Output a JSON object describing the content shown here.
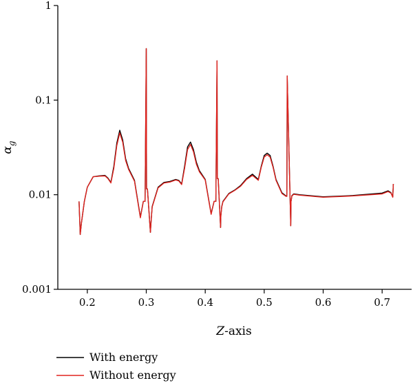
{
  "chart_data": {
    "type": "line",
    "title": "",
    "xlabel_italic": "Z",
    "xlabel_rest": "-axis",
    "ylabel_main": "α",
    "ylabel_sub": "g",
    "xlim": [
      0.15,
      0.75
    ],
    "ylim": [
      0.001,
      1
    ],
    "yscale": "log",
    "xticks": [
      0.2,
      0.3,
      0.4,
      0.5,
      0.6,
      0.7
    ],
    "xtick_labels": [
      "0.2",
      "0.3",
      "0.4",
      "0.5",
      "0.6",
      "0.7"
    ],
    "yticks": [
      0.001,
      0.01,
      0.1,
      1
    ],
    "ytick_labels": [
      "0.001",
      "0.01",
      "0.1",
      "1"
    ],
    "grid": false,
    "legend_position": "bottom-left, below plot",
    "series": [
      {
        "name": "With energy",
        "color": "#000000",
        "x": [
          0.186,
          0.188,
          0.19,
          0.195,
          0.2,
          0.21,
          0.22,
          0.23,
          0.235,
          0.24,
          0.245,
          0.25,
          0.255,
          0.26,
          0.265,
          0.27,
          0.28,
          0.29,
          0.295,
          0.298,
          0.3,
          0.3005,
          0.302,
          0.307,
          0.308,
          0.31,
          0.32,
          0.33,
          0.34,
          0.35,
          0.355,
          0.36,
          0.365,
          0.37,
          0.375,
          0.38,
          0.385,
          0.39,
          0.4,
          0.41,
          0.415,
          0.418,
          0.42,
          0.4205,
          0.422,
          0.426,
          0.4265,
          0.428,
          0.43,
          0.44,
          0.45,
          0.46,
          0.47,
          0.48,
          0.49,
          0.495,
          0.5,
          0.505,
          0.51,
          0.515,
          0.52,
          0.53,
          0.537,
          0.5385,
          0.539,
          0.545,
          0.5455,
          0.547,
          0.55,
          0.56,
          0.6,
          0.65,
          0.7,
          0.71,
          0.715,
          0.718,
          0.719
        ],
        "y": [
          0.0085,
          0.0038,
          0.005,
          0.0085,
          0.012,
          0.0155,
          0.0158,
          0.016,
          0.015,
          0.0135,
          0.02,
          0.035,
          0.048,
          0.038,
          0.024,
          0.019,
          0.0142,
          0.0058,
          0.0085,
          0.0085,
          0.35,
          0.0115,
          0.0115,
          0.004,
          0.005,
          0.0075,
          0.012,
          0.0135,
          0.0138,
          0.0145,
          0.0142,
          0.013,
          0.02,
          0.032,
          0.036,
          0.03,
          0.022,
          0.018,
          0.0145,
          0.0063,
          0.0085,
          0.0085,
          0.26,
          0.0148,
          0.0148,
          0.0045,
          0.006,
          0.0075,
          0.0085,
          0.0103,
          0.0112,
          0.0125,
          0.0148,
          0.0165,
          0.0145,
          0.02,
          0.026,
          0.0275,
          0.026,
          0.02,
          0.0145,
          0.0105,
          0.0097,
          0.0097,
          0.18,
          0.0047,
          0.0085,
          0.0098,
          0.0102,
          0.01,
          0.0095,
          0.0098,
          0.0104,
          0.011,
          0.0105,
          0.0095,
          0.013
        ]
      },
      {
        "name": "Without energy",
        "color": "#e0231e",
        "x": [
          0.186,
          0.188,
          0.19,
          0.195,
          0.2,
          0.21,
          0.22,
          0.23,
          0.235,
          0.24,
          0.245,
          0.25,
          0.255,
          0.26,
          0.265,
          0.27,
          0.28,
          0.29,
          0.295,
          0.298,
          0.3,
          0.3005,
          0.302,
          0.307,
          0.308,
          0.31,
          0.32,
          0.33,
          0.34,
          0.35,
          0.355,
          0.36,
          0.365,
          0.37,
          0.375,
          0.38,
          0.385,
          0.39,
          0.4,
          0.41,
          0.415,
          0.418,
          0.42,
          0.4205,
          0.422,
          0.426,
          0.4265,
          0.428,
          0.43,
          0.44,
          0.45,
          0.46,
          0.47,
          0.48,
          0.49,
          0.495,
          0.5,
          0.505,
          0.51,
          0.515,
          0.52,
          0.53,
          0.537,
          0.5385,
          0.539,
          0.545,
          0.5455,
          0.547,
          0.55,
          0.56,
          0.6,
          0.65,
          0.7,
          0.71,
          0.715,
          0.718,
          0.719
        ],
        "y": [
          0.0085,
          0.0038,
          0.005,
          0.0085,
          0.012,
          0.0155,
          0.0157,
          0.0158,
          0.0148,
          0.0133,
          0.019,
          0.033,
          0.045,
          0.036,
          0.023,
          0.0185,
          0.0139,
          0.0057,
          0.0085,
          0.0085,
          0.35,
          0.0115,
          0.0115,
          0.004,
          0.005,
          0.0074,
          0.0118,
          0.0133,
          0.0136,
          0.0143,
          0.014,
          0.0128,
          0.019,
          0.03,
          0.034,
          0.0285,
          0.021,
          0.0175,
          0.0143,
          0.0062,
          0.0085,
          0.0085,
          0.26,
          0.0148,
          0.0148,
          0.0045,
          0.006,
          0.0074,
          0.0084,
          0.0102,
          0.0111,
          0.0123,
          0.0145,
          0.016,
          0.0142,
          0.0195,
          0.025,
          0.0265,
          0.025,
          0.0195,
          0.0142,
          0.0103,
          0.0096,
          0.0096,
          0.18,
          0.0047,
          0.0085,
          0.0097,
          0.0101,
          0.0099,
          0.0094,
          0.0097,
          0.0102,
          0.0108,
          0.0104,
          0.0094,
          0.013
        ]
      }
    ]
  }
}
